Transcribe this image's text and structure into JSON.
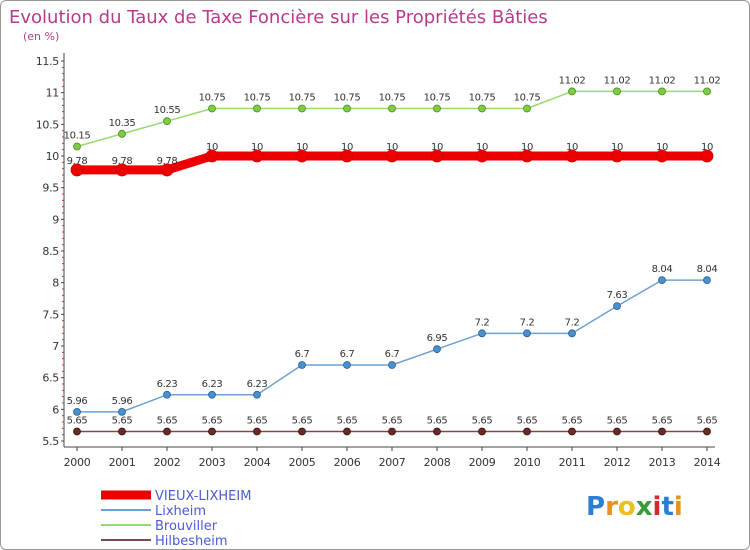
{
  "chart_data": {
    "type": "line",
    "title": "Evolution du Taux de Taxe Foncière sur les Propriétés Bâties",
    "subtitle": "(en %)",
    "x": [
      "2000",
      "2001",
      "2002",
      "2003",
      "2004",
      "2005",
      "2006",
      "2007",
      "2008",
      "2009",
      "2010",
      "2011",
      "2012",
      "2013",
      "2014"
    ],
    "ylim": [
      5.5,
      11.5
    ],
    "yticks": [
      "5.5",
      "6",
      "6.5",
      "7",
      "7.5",
      "8",
      "8.5",
      "9",
      "9.5",
      "10",
      "10.5",
      "11",
      "11.5"
    ],
    "grid": false,
    "legend_position": "bottom-left",
    "series": [
      {
        "name": "VIEUX-LIXHEIM",
        "color": "#ee0000",
        "values": [
          9.78,
          9.78,
          9.78,
          10,
          10,
          10,
          10,
          10,
          10,
          10,
          10,
          10,
          10,
          10,
          10
        ]
      },
      {
        "name": "Lixheim",
        "color": "#6fa0d4",
        "values": [
          5.96,
          5.96,
          6.23,
          6.23,
          6.23,
          6.7,
          6.7,
          6.7,
          6.95,
          7.2,
          7.2,
          7.2,
          7.63,
          8.04,
          8.04
        ]
      },
      {
        "name": "Brouviller",
        "color": "#99d96a",
        "values": [
          10.15,
          10.35,
          10.55,
          10.75,
          10.75,
          10.75,
          10.75,
          10.75,
          10.75,
          10.75,
          10.75,
          11.02,
          11.02,
          11.02,
          11.02
        ]
      },
      {
        "name": "Hilbesheim",
        "color": "#7a4a4a",
        "values": [
          5.65,
          5.65,
          5.65,
          5.65,
          5.65,
          5.65,
          5.65,
          5.65,
          5.65,
          5.65,
          5.65,
          5.65,
          5.65,
          5.65,
          5.65
        ]
      }
    ],
    "data_labels": {
      "VIEUX-LIXHEIM": [
        "9.78",
        "9.78",
        "9.78",
        "10",
        "10",
        "10",
        "10",
        "10",
        "10",
        "10",
        "10",
        "10",
        "10",
        "10",
        "10"
      ],
      "Lixheim": [
        "5.96",
        "5.96",
        "6.23",
        "6.23",
        "6.23",
        "6.7",
        "6.7",
        "6.7",
        "6.95",
        "7.2",
        "7.2",
        "7.2",
        "7.63",
        "8.04",
        "8.04"
      ],
      "Brouviller": [
        "10.15",
        "10.35",
        "10.55",
        "10.75",
        "10.75",
        "10.75",
        "10.75",
        "10.75",
        "10.75",
        "10.75",
        "10.75",
        "11.02",
        "11.02",
        "11.02",
        "11.02"
      ],
      "Hilbesheim": [
        "5.65",
        "5.65",
        "5.65",
        "5.65",
        "5.65",
        "5.65",
        "5.65",
        "5.65",
        "5.65",
        "5.65",
        "5.65",
        "5.65",
        "5.65",
        "5.65",
        "5.65"
      ]
    }
  },
  "logo": {
    "text": "Proxiti"
  }
}
